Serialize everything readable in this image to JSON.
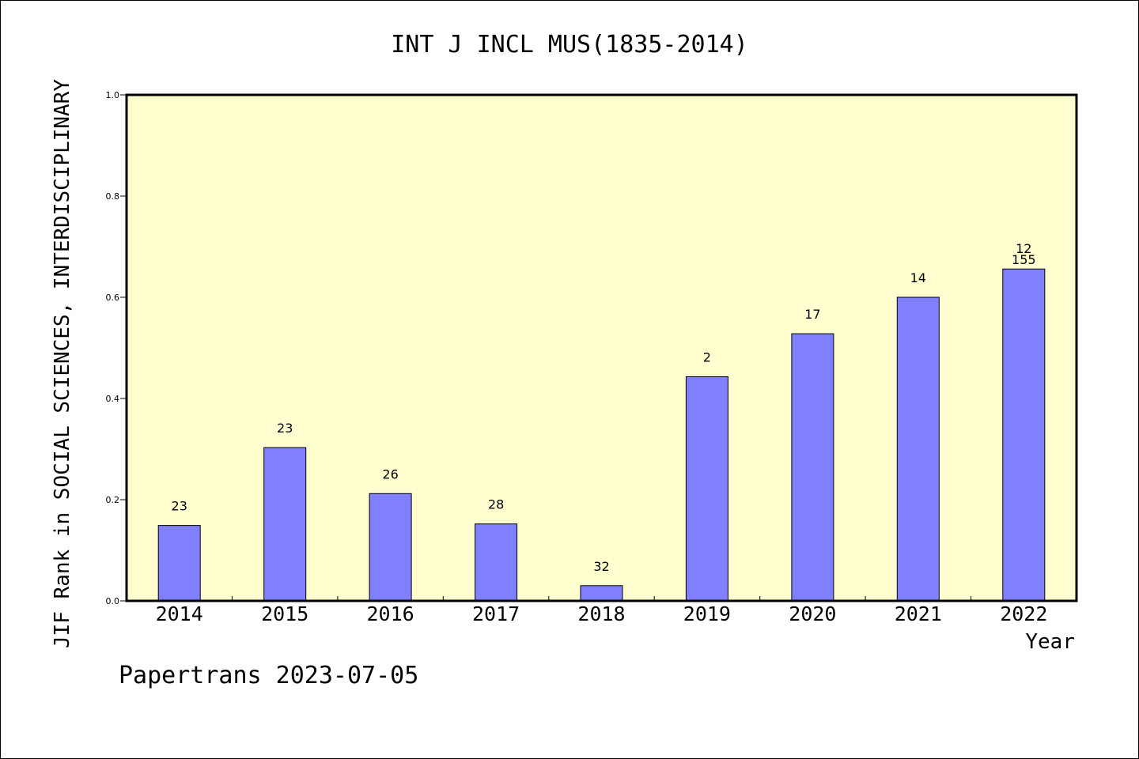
{
  "chart_data": {
    "type": "bar",
    "title": "INT J INCL MUS(1835-2014)",
    "xlabel": "Year",
    "ylabel": "JIF Rank in SOCIAL SCIENCES, INTERDISCIPLINARY",
    "ylim": [
      0,
      1.0
    ],
    "yticks": [
      "0.0",
      "0.2",
      "0.4",
      "0.6",
      "0.8",
      "1.0"
    ],
    "ytick_values": [
      0,
      0.2,
      0.4,
      0.6,
      0.8,
      1.0
    ],
    "categories": [
      "2014",
      "2015",
      "2016",
      "2017",
      "2018",
      "2019",
      "2020",
      "2021",
      "2022"
    ],
    "values": [
      0.149,
      0.303,
      0.212,
      0.152,
      0.03,
      0.443,
      0.528,
      0.6,
      0.656
    ],
    "bar_labels": [
      "23",
      "23",
      "26",
      "28",
      "32",
      "2",
      "17",
      "14",
      "155"
    ],
    "extra_label": {
      "category": "2022",
      "text": "12"
    },
    "grid": false,
    "colors": {
      "bar": "#8080ff",
      "plot_bg": "#ffffd0",
      "axis": "#000000"
    }
  },
  "footer": {
    "watermark": "Papertrans 2023-07-05"
  }
}
